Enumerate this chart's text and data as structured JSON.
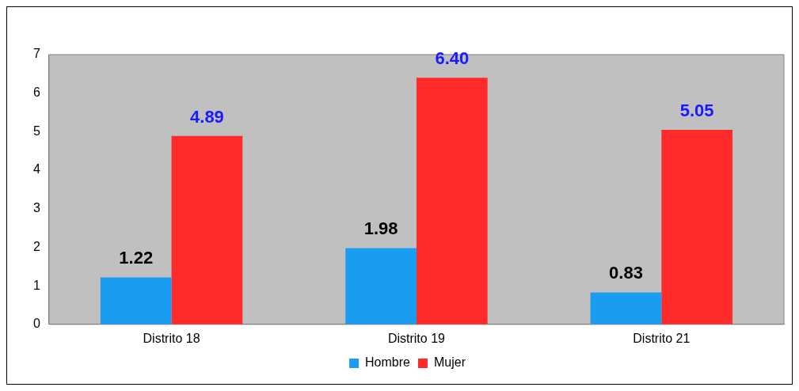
{
  "chart_data": {
    "type": "bar",
    "categories": [
      "Distrito 18",
      "Distrito 19",
      "Distrito 21"
    ],
    "series": [
      {
        "name": "Hombre",
        "color": "#1a9cf0",
        "values": [
          1.22,
          1.98,
          0.83
        ],
        "value_labels": [
          "1.22",
          "1.98",
          "0.83"
        ]
      },
      {
        "name": "Mujer",
        "color": "#ff2a2a",
        "values": [
          4.89,
          6.4,
          5.05
        ],
        "value_labels": [
          "4.89",
          "6.40",
          "5.05"
        ]
      }
    ],
    "ylim": [
      0,
      7
    ],
    "yticks": [
      0,
      1,
      2,
      3,
      4,
      5,
      6,
      7
    ],
    "grid": false,
    "legend": "bottom"
  }
}
